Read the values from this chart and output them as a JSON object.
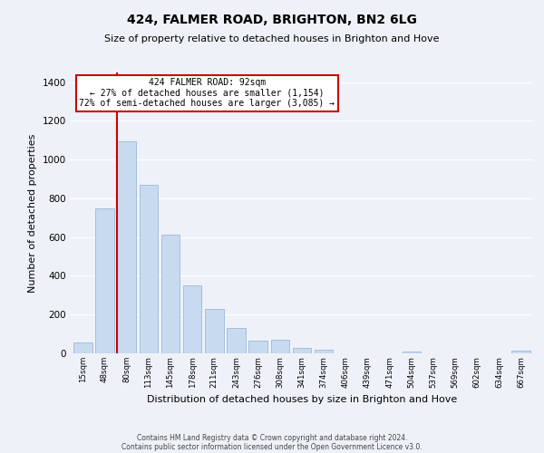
{
  "title": "424, FALMER ROAD, BRIGHTON, BN2 6LG",
  "subtitle": "Size of property relative to detached houses in Brighton and Hove",
  "xlabel": "Distribution of detached houses by size in Brighton and Hove",
  "ylabel": "Number of detached properties",
  "footer_line1": "Contains HM Land Registry data © Crown copyright and database right 2024.",
  "footer_line2": "Contains public sector information licensed under the Open Government Licence v3.0.",
  "bin_labels": [
    "15sqm",
    "48sqm",
    "80sqm",
    "113sqm",
    "145sqm",
    "178sqm",
    "211sqm",
    "243sqm",
    "276sqm",
    "308sqm",
    "341sqm",
    "374sqm",
    "406sqm",
    "439sqm",
    "471sqm",
    "504sqm",
    "537sqm",
    "569sqm",
    "602sqm",
    "634sqm",
    "667sqm"
  ],
  "bar_heights": [
    55,
    750,
    1095,
    870,
    615,
    350,
    228,
    132,
    65,
    70,
    28,
    18,
    0,
    0,
    0,
    10,
    0,
    0,
    0,
    0,
    12
  ],
  "bar_color": "#c8daf0",
  "bar_edge_color": "#9ab8d8",
  "property_label": "424 FALMER ROAD: 92sqm",
  "annotation_line1": "← 27% of detached houses are smaller (1,154)",
  "annotation_line2": "72% of semi-detached houses are larger (3,085) →",
  "vline_color": "#cc0000",
  "vline_x": 1.58,
  "ylim": [
    0,
    1450
  ],
  "yticks": [
    0,
    200,
    400,
    600,
    800,
    1000,
    1200,
    1400
  ],
  "background_color": "#eef2f8",
  "grid_color": "#ffffff",
  "title_fontsize": 10,
  "subtitle_fontsize": 8
}
